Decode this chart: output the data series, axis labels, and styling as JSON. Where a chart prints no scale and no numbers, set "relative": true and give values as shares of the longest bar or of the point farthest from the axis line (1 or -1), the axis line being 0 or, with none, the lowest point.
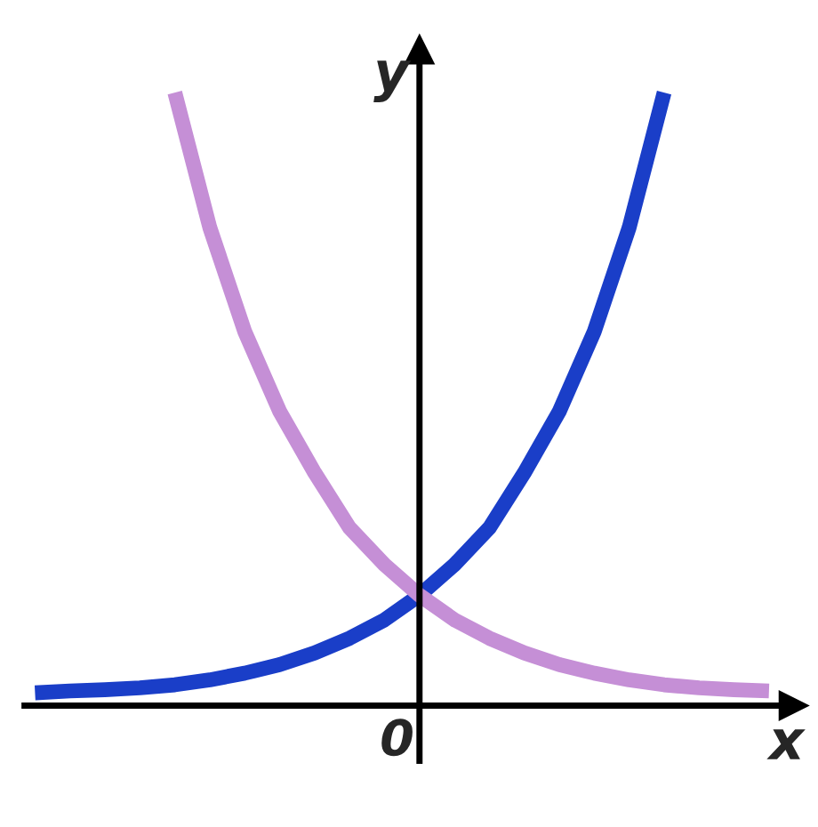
{
  "chart_data": {
    "type": "line",
    "relative": true,
    "xlabel": "x",
    "ylabel": "y",
    "annotations": [
      "0"
    ],
    "categories": [
      null,
      null,
      null,
      null,
      null,
      null,
      null,
      null,
      null,
      null,
      null,
      null,
      null,
      null,
      null,
      null,
      null,
      null,
      null,
      null,
      null,
      null
    ],
    "series": [
      {
        "color": "#1a3ec8",
        "values": [
          0.021,
          0.024,
          0.026,
          0.029,
          0.034,
          0.042,
          0.053,
          0.067,
          0.086,
          0.11,
          0.14,
          0.18,
          0.23,
          0.29,
          0.38,
          0.48,
          0.61,
          0.78,
          1,
          null,
          null,
          null
        ]
      },
      {
        "color": "#c58fd6",
        "values": [
          null,
          null,
          null,
          null,
          1,
          0.78,
          0.61,
          0.48,
          0.38,
          0.29,
          0.23,
          0.18,
          0.14,
          0.11,
          0.086,
          0.067,
          0.053,
          0.042,
          0.034,
          0.029,
          0.026,
          0.024
        ]
      }
    ]
  }
}
